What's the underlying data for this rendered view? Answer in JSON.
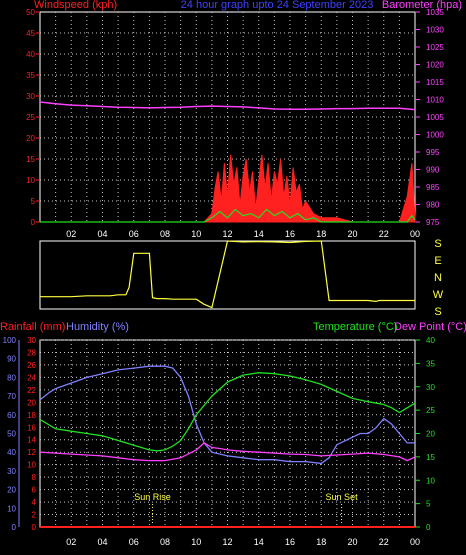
{
  "header": {
    "left_label": "Windspeed (kph)",
    "center_label": "24 hour graph upto 24 September 2023",
    "right_label": "Barometer (hpa)"
  },
  "colors": {
    "background": "#000000",
    "frame": "#ffffff",
    "grid": "#c8c8c8",
    "wind": "#ff2020",
    "gust_green": "#20e020",
    "barometer": "#ff40ff",
    "direction": "#ffff40",
    "rain": "#ff2020",
    "humidity": "#8080ff",
    "temperature": "#20e020",
    "dewpoint": "#ff40ff",
    "header_center": "#4040ff",
    "sun_marker": "#ffff40"
  },
  "x_axis": {
    "ticks": [
      "02",
      "04",
      "06",
      "08",
      "10",
      "12",
      "14",
      "16",
      "18",
      "20",
      "22",
      "00"
    ]
  },
  "direction_panel": {
    "labels": [
      "S",
      "E",
      "N",
      "W",
      "S"
    ]
  },
  "lower_header": {
    "rain_label": "Rainfall (mm)",
    "humidity_label": "Humidity (%)",
    "temp_label": "Temperature (°C)",
    "dew_label": "Dew Point (°C)"
  },
  "annotations": {
    "sunrise": "Sun Rise",
    "sunset": "Sun Set"
  },
  "chart_data": [
    {
      "type": "line",
      "panel": "wind_barometer",
      "x_ticks": [
        "02",
        "04",
        "06",
        "08",
        "10",
        "12",
        "14",
        "16",
        "18",
        "20",
        "22",
        "00"
      ],
      "y_left": {
        "label": "Windspeed (kph)",
        "ylim": [
          0,
          50
        ],
        "ticks": [
          0,
          5,
          10,
          15,
          20,
          25,
          30,
          35,
          40,
          45,
          50
        ]
      },
      "y_right": {
        "label": "Barometer (hpa)",
        "ylim": [
          975,
          1035
        ],
        "ticks": [
          975,
          980,
          985,
          990,
          995,
          1000,
          1005,
          1010,
          1015,
          1020,
          1025,
          1030,
          1035
        ]
      },
      "grid": true,
      "series": [
        {
          "name": "Barometer (hpa)",
          "axis": "right",
          "x": [
            0,
            1,
            2,
            3,
            4,
            5,
            6,
            7,
            8,
            9,
            10,
            11,
            12,
            13,
            14,
            15,
            16,
            17,
            18,
            19,
            20,
            21,
            22,
            23,
            24
          ],
          "values": [
            1009.3,
            1008.8,
            1008.4,
            1008.2,
            1008.0,
            1007.8,
            1007.7,
            1007.6,
            1007.7,
            1007.8,
            1008.0,
            1008.1,
            1008.0,
            1007.9,
            1007.6,
            1007.3,
            1007.2,
            1007.2,
            1007.3,
            1007.4,
            1007.4,
            1007.5,
            1007.5,
            1007.5,
            1007.1
          ]
        },
        {
          "name": "Windspeed (kph)",
          "axis": "left",
          "x": [
            0,
            1,
            2,
            3,
            4,
            5,
            6,
            7,
            8,
            9,
            10,
            10.5,
            11,
            11.2,
            11.4,
            11.6,
            11.8,
            12,
            12.2,
            12.4,
            12.6,
            12.8,
            13,
            13.2,
            13.4,
            13.6,
            13.8,
            14,
            14.2,
            14.4,
            14.6,
            14.8,
            15,
            15.2,
            15.4,
            15.6,
            15.8,
            16,
            16.2,
            16.4,
            16.6,
            16.8,
            17,
            17.5,
            18,
            19,
            20,
            21,
            22,
            23,
            23.5,
            23.8,
            24
          ],
          "values": [
            0,
            0,
            0,
            0,
            0,
            0,
            0,
            0,
            0,
            0,
            0,
            0,
            2,
            8,
            12,
            5,
            14,
            6,
            16,
            9,
            13,
            4,
            11,
            15,
            7,
            12,
            3,
            10,
            16,
            8,
            14,
            5,
            12,
            9,
            15,
            6,
            11,
            4,
            13,
            7,
            9,
            3,
            5,
            2,
            1,
            1,
            0,
            0,
            0,
            0,
            6,
            14,
            1
          ]
        },
        {
          "name": "",
          "axis": "left",
          "x": [
            0,
            10.5,
            11,
            11.5,
            12,
            12.5,
            13,
            13.5,
            14,
            14.5,
            15,
            15.5,
            16,
            16.5,
            17,
            17.5,
            18,
            23.5,
            23.8,
            24
          ],
          "values": [
            0,
            0,
            1,
            2.5,
            1,
            3,
            1.5,
            2,
            1,
            3,
            1.5,
            2.5,
            1,
            2,
            0.5,
            1,
            0,
            0,
            1.5,
            0.5
          ]
        }
      ]
    },
    {
      "type": "line",
      "panel": "wind_direction",
      "y_labels": [
        "S",
        "E",
        "N",
        "W",
        "S"
      ],
      "y_degrees": [
        180,
        90,
        0,
        270,
        180
      ],
      "x_ticks": [
        "02",
        "04",
        "06",
        "08",
        "10",
        "12",
        "14",
        "16",
        "18",
        "20",
        "22",
        "00"
      ],
      "grid": false,
      "series": [
        {
          "name": "",
          "x": [
            0,
            1,
            2,
            3,
            4,
            4.5,
            5,
            5.5,
            5.7,
            6,
            6.5,
            7,
            7.2,
            7.5,
            8,
            8.5,
            9,
            9.5,
            10,
            10.5,
            11,
            12,
            13,
            14,
            15,
            16,
            17,
            18,
            18.5,
            19,
            20,
            21,
            21.5,
            21.7,
            22,
            23,
            24
          ],
          "values": [
            245,
            245,
            245,
            250,
            250,
            250,
            255,
            255,
            295,
            115,
            115,
            115,
            240,
            235,
            235,
            232,
            232,
            232,
            232,
            205,
            188,
            180,
            175,
            177,
            175,
            172,
            178,
            180,
            225,
            225,
            225,
            225,
            220,
            225,
            225,
            225,
            225
          ]
        }
      ]
    },
    {
      "type": "line",
      "panel": "temperature_humidity",
      "x_ticks": [
        "02",
        "04",
        "06",
        "08",
        "10",
        "12",
        "14",
        "16",
        "18",
        "20",
        "22",
        "00"
      ],
      "y_left_rain": {
        "label": "Rainfall (mm)",
        "ylim": [
          0,
          30
        ],
        "ticks": [
          0,
          2,
          4,
          6,
          8,
          10,
          12,
          14,
          16,
          18,
          20,
          22,
          24,
          26,
          28,
          30
        ]
      },
      "y_left_humidity": {
        "label": "Humidity (%)",
        "ylim": [
          0,
          100
        ],
        "ticks": [
          0,
          10,
          20,
          30,
          40,
          50,
          60,
          70,
          80,
          90,
          100
        ]
      },
      "y_right": {
        "label": "Temperature (°C)",
        "ylim": [
          0,
          40
        ],
        "ticks": [
          0,
          5,
          10,
          15,
          20,
          25,
          30,
          35,
          40
        ]
      },
      "grid": true,
      "annotations": [
        {
          "text": "Sun Rise",
          "x": 7.2
        },
        {
          "text": "Sun Set",
          "x": 19.3
        }
      ],
      "series": [
        {
          "name": "Rainfall (mm)",
          "axis": "rain",
          "x": [
            0,
            24
          ],
          "values": [
            0,
            0
          ]
        },
        {
          "name": "Humidity (%)",
          "axis": "humidity",
          "x": [
            0,
            0.3,
            0.6,
            1,
            2,
            3,
            4,
            5,
            6,
            7,
            8,
            8.5,
            9,
            9.5,
            10,
            10.5,
            11,
            12,
            13,
            14,
            15,
            16,
            17,
            18,
            18.5,
            19,
            20,
            20.5,
            21,
            21.5,
            22,
            22.5,
            23,
            23.5,
            24
          ],
          "values": [
            68,
            70,
            72,
            74,
            77,
            80,
            82,
            84,
            85,
            86,
            86,
            85,
            80,
            70,
            55,
            45,
            40,
            38,
            37,
            36,
            36,
            35,
            35,
            34,
            37,
            44,
            48,
            50,
            50,
            53,
            58,
            55,
            50,
            45,
            45
          ]
        },
        {
          "name": "Temperature (°C)",
          "axis": "right",
          "x": [
            0,
            0.5,
            1,
            2,
            3,
            4,
            5,
            6,
            7,
            7.5,
            8,
            8.5,
            9,
            9.5,
            10,
            11,
            12,
            13,
            14,
            15,
            16,
            17,
            18,
            19,
            20,
            21,
            22,
            22.5,
            23,
            23.5,
            24
          ],
          "values": [
            23,
            22,
            21,
            20.5,
            20,
            19.5,
            18.5,
            17.5,
            16.5,
            16.3,
            16.5,
            17.3,
            18.5,
            21,
            24,
            28,
            31,
            32.5,
            33,
            32.8,
            32.3,
            31.5,
            30.5,
            29,
            27.5,
            26.8,
            26.2,
            25.5,
            24.5,
            25.5,
            26.5
          ]
        },
        {
          "name": "Dew Point (°C)",
          "axis": "right",
          "x": [
            0,
            1,
            2,
            3,
            4,
            5,
            6,
            7,
            8,
            9,
            10,
            10.5,
            11,
            11.5,
            12,
            13,
            14,
            15,
            16,
            17,
            18,
            19,
            20,
            21,
            22,
            23,
            23.5,
            24
          ],
          "values": [
            16,
            15.8,
            15.6,
            15.4,
            15.2,
            14.8,
            14.4,
            14.2,
            14.2,
            14.8,
            16.5,
            18,
            17,
            16.8,
            16.5,
            16.2,
            16,
            15.8,
            15.6,
            15.5,
            15.2,
            15.4,
            15.6,
            15.8,
            15.5,
            15,
            14.2,
            15
          ]
        }
      ]
    }
  ]
}
